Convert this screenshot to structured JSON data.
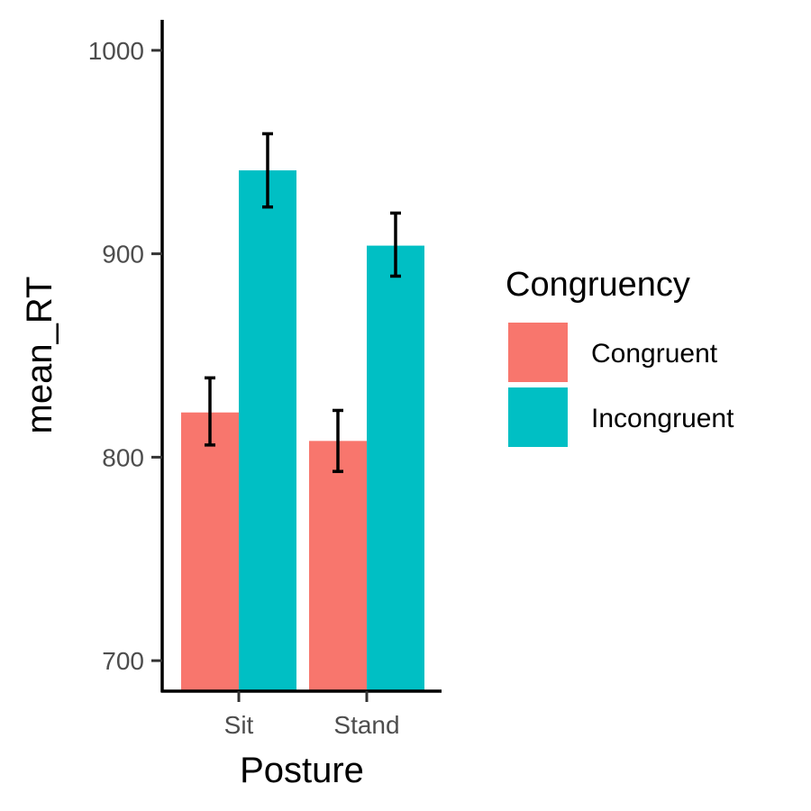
{
  "chart_data": {
    "type": "bar",
    "xlabel": "Posture",
    "ylabel": "mean_RT",
    "categories": [
      "Sit",
      "Stand"
    ],
    "series": [
      {
        "name": "Congruent",
        "color": "#F8766D",
        "values": [
          822,
          808
        ],
        "error_low": [
          806,
          793
        ],
        "error_high": [
          839,
          823
        ]
      },
      {
        "name": "Incongruent",
        "color": "#00BFC4",
        "values": [
          941,
          904
        ],
        "error_low": [
          923,
          889
        ],
        "error_high": [
          959,
          920
        ]
      }
    ],
    "ylim": [
      685,
      1015
    ],
    "yticks": [
      700,
      800,
      900,
      1000
    ],
    "ytick_labels": [
      "700",
      "800",
      "900",
      "1000"
    ],
    "legend": {
      "title": "Congruency",
      "position": "right"
    },
    "grid": false
  }
}
